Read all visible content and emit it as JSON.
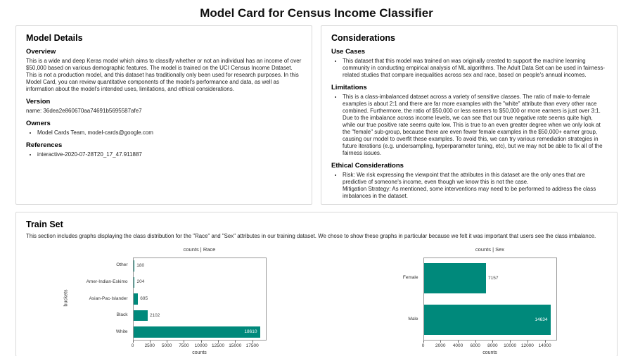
{
  "page": {
    "title": "Model Card for Census Income Classifier"
  },
  "model_details": {
    "title": "Model Details",
    "overview_heading": "Overview",
    "overview_text": "This is a wide and deep Keras model which aims to classify whether or not an individual has an income of over $50,000 based on various demographic features. The model is trained on the UCI Census Income Dataset. This is not a production model, and this dataset has traditionally only been used for research purposes. In this Model Card, you can review quantitative components of the model's performance and data, as well as information about the model's intended uses, limitations, and ethical considerations.",
    "version_heading": "Version",
    "version_text": "name: 36dea2e860670aa74691b5695587afe7",
    "owners_heading": "Owners",
    "owners_items": [
      "Model Cards Team, model-cards@google.com"
    ],
    "references_heading": "References",
    "references_items": [
      "interactive-2020-07-28T20_17_47.911887"
    ]
  },
  "considerations": {
    "title": "Considerations",
    "use_cases_heading": "Use Cases",
    "use_cases_items": [
      "This dataset that this model was trained on was originally created to support the machine learning community in conducting empirical analysis of ML algorithms. The Adult Data Set can be used in fairness-related studies that compare inequalities across sex and race, based on people's annual incomes."
    ],
    "limitations_heading": "Limitations",
    "limitations_items": [
      "This is a class-imbalanced dataset across a variety of sensitive classes. The ratio of male-to-female examples is about 2:1 and there are far more examples with the \"white\" attribute than every other race combined. Furthermore, the ratio of $50,000 or less earners to $50,000 or more earners is just over 3:1. Due to the imbalance across income levels, we can see that our true negative rate seems quite high, while our true positive rate seems quite low. This is true to an even greater degree when we only look at the \"female\" sub-group, because there are even fewer female examples in the $50,000+ earner group, causing our model to overfit these examples. To avoid this, we can try various remediation strategies in future iterations (e.g. undersampling, hyperparameter tuning, etc), but we may not be able to fix all of the fairness issues."
    ],
    "ethical_heading": "Ethical Considerations",
    "ethical_items": [
      "Risk: We risk expressing the viewpoint that the attributes in this dataset are the only ones that are predictive of someone's income, even though we know this is not the case.\nMitigation Strategy: As mentioned, some interventions may need to be performed to address the class imbalances in the dataset."
    ]
  },
  "train_set": {
    "title": "Train Set",
    "description": "This section includes graphs displaying the class distribution for the \"Race\" and \"Sex\" attributes in our training dataset. We chose to show these graphs in particular because we felt it was important that users see the class imbalance."
  },
  "chart_data": [
    {
      "type": "bar",
      "orientation": "horizontal",
      "title": "counts | Race",
      "xlabel": "counts",
      "ylabel": "buckets",
      "categories": [
        "Other",
        "Amer-Indian-Eskimo",
        "Asian-Pac-Islander",
        "Black",
        "White"
      ],
      "values": [
        180,
        204,
        695,
        2102,
        18610
      ],
      "xticks": [
        0,
        2500,
        5000,
        7500,
        10000,
        12500,
        15000,
        17500
      ],
      "xlim": [
        0,
        19540
      ],
      "bar_color": "#00897b",
      "grid": false,
      "legend": false
    },
    {
      "type": "bar",
      "orientation": "horizontal",
      "title": "counts | Sex",
      "xlabel": "counts",
      "ylabel": "",
      "categories": [
        "Female",
        "Male"
      ],
      "values": [
        7157,
        14634
      ],
      "xticks": [
        0,
        2000,
        4000,
        6000,
        8000,
        10000,
        12000,
        14000
      ],
      "xlim": [
        0,
        15366
      ],
      "bar_color": "#00897b",
      "grid": false,
      "legend": false
    }
  ]
}
